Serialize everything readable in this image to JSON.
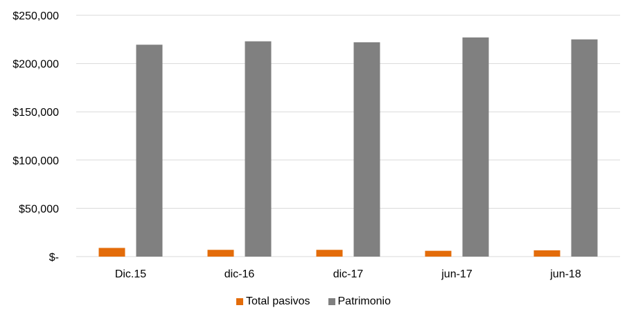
{
  "chart_data": {
    "type": "bar",
    "title": "",
    "xlabel": "",
    "ylabel": "",
    "categories": [
      "Dic.15",
      "dic-16",
      "dic-17",
      "jun-17",
      "jun-18"
    ],
    "series": [
      {
        "name": "Total pasivos",
        "color": "#e36c0a",
        "values": [
          9000,
          7000,
          7000,
          6000,
          6500
        ]
      },
      {
        "name": "Patrimonio",
        "color": "#808080",
        "values": [
          219500,
          223000,
          222000,
          227000,
          225000
        ]
      }
    ],
    "ylim": [
      0,
      250000
    ],
    "yticks": [
      0,
      50000,
      100000,
      150000,
      200000,
      250000
    ],
    "ytick_labels": [
      "$-",
      "$50,000",
      "$100,000",
      "$150,000",
      "$200,000",
      "$250,000"
    ],
    "grid": true,
    "legend_position": "bottom"
  }
}
